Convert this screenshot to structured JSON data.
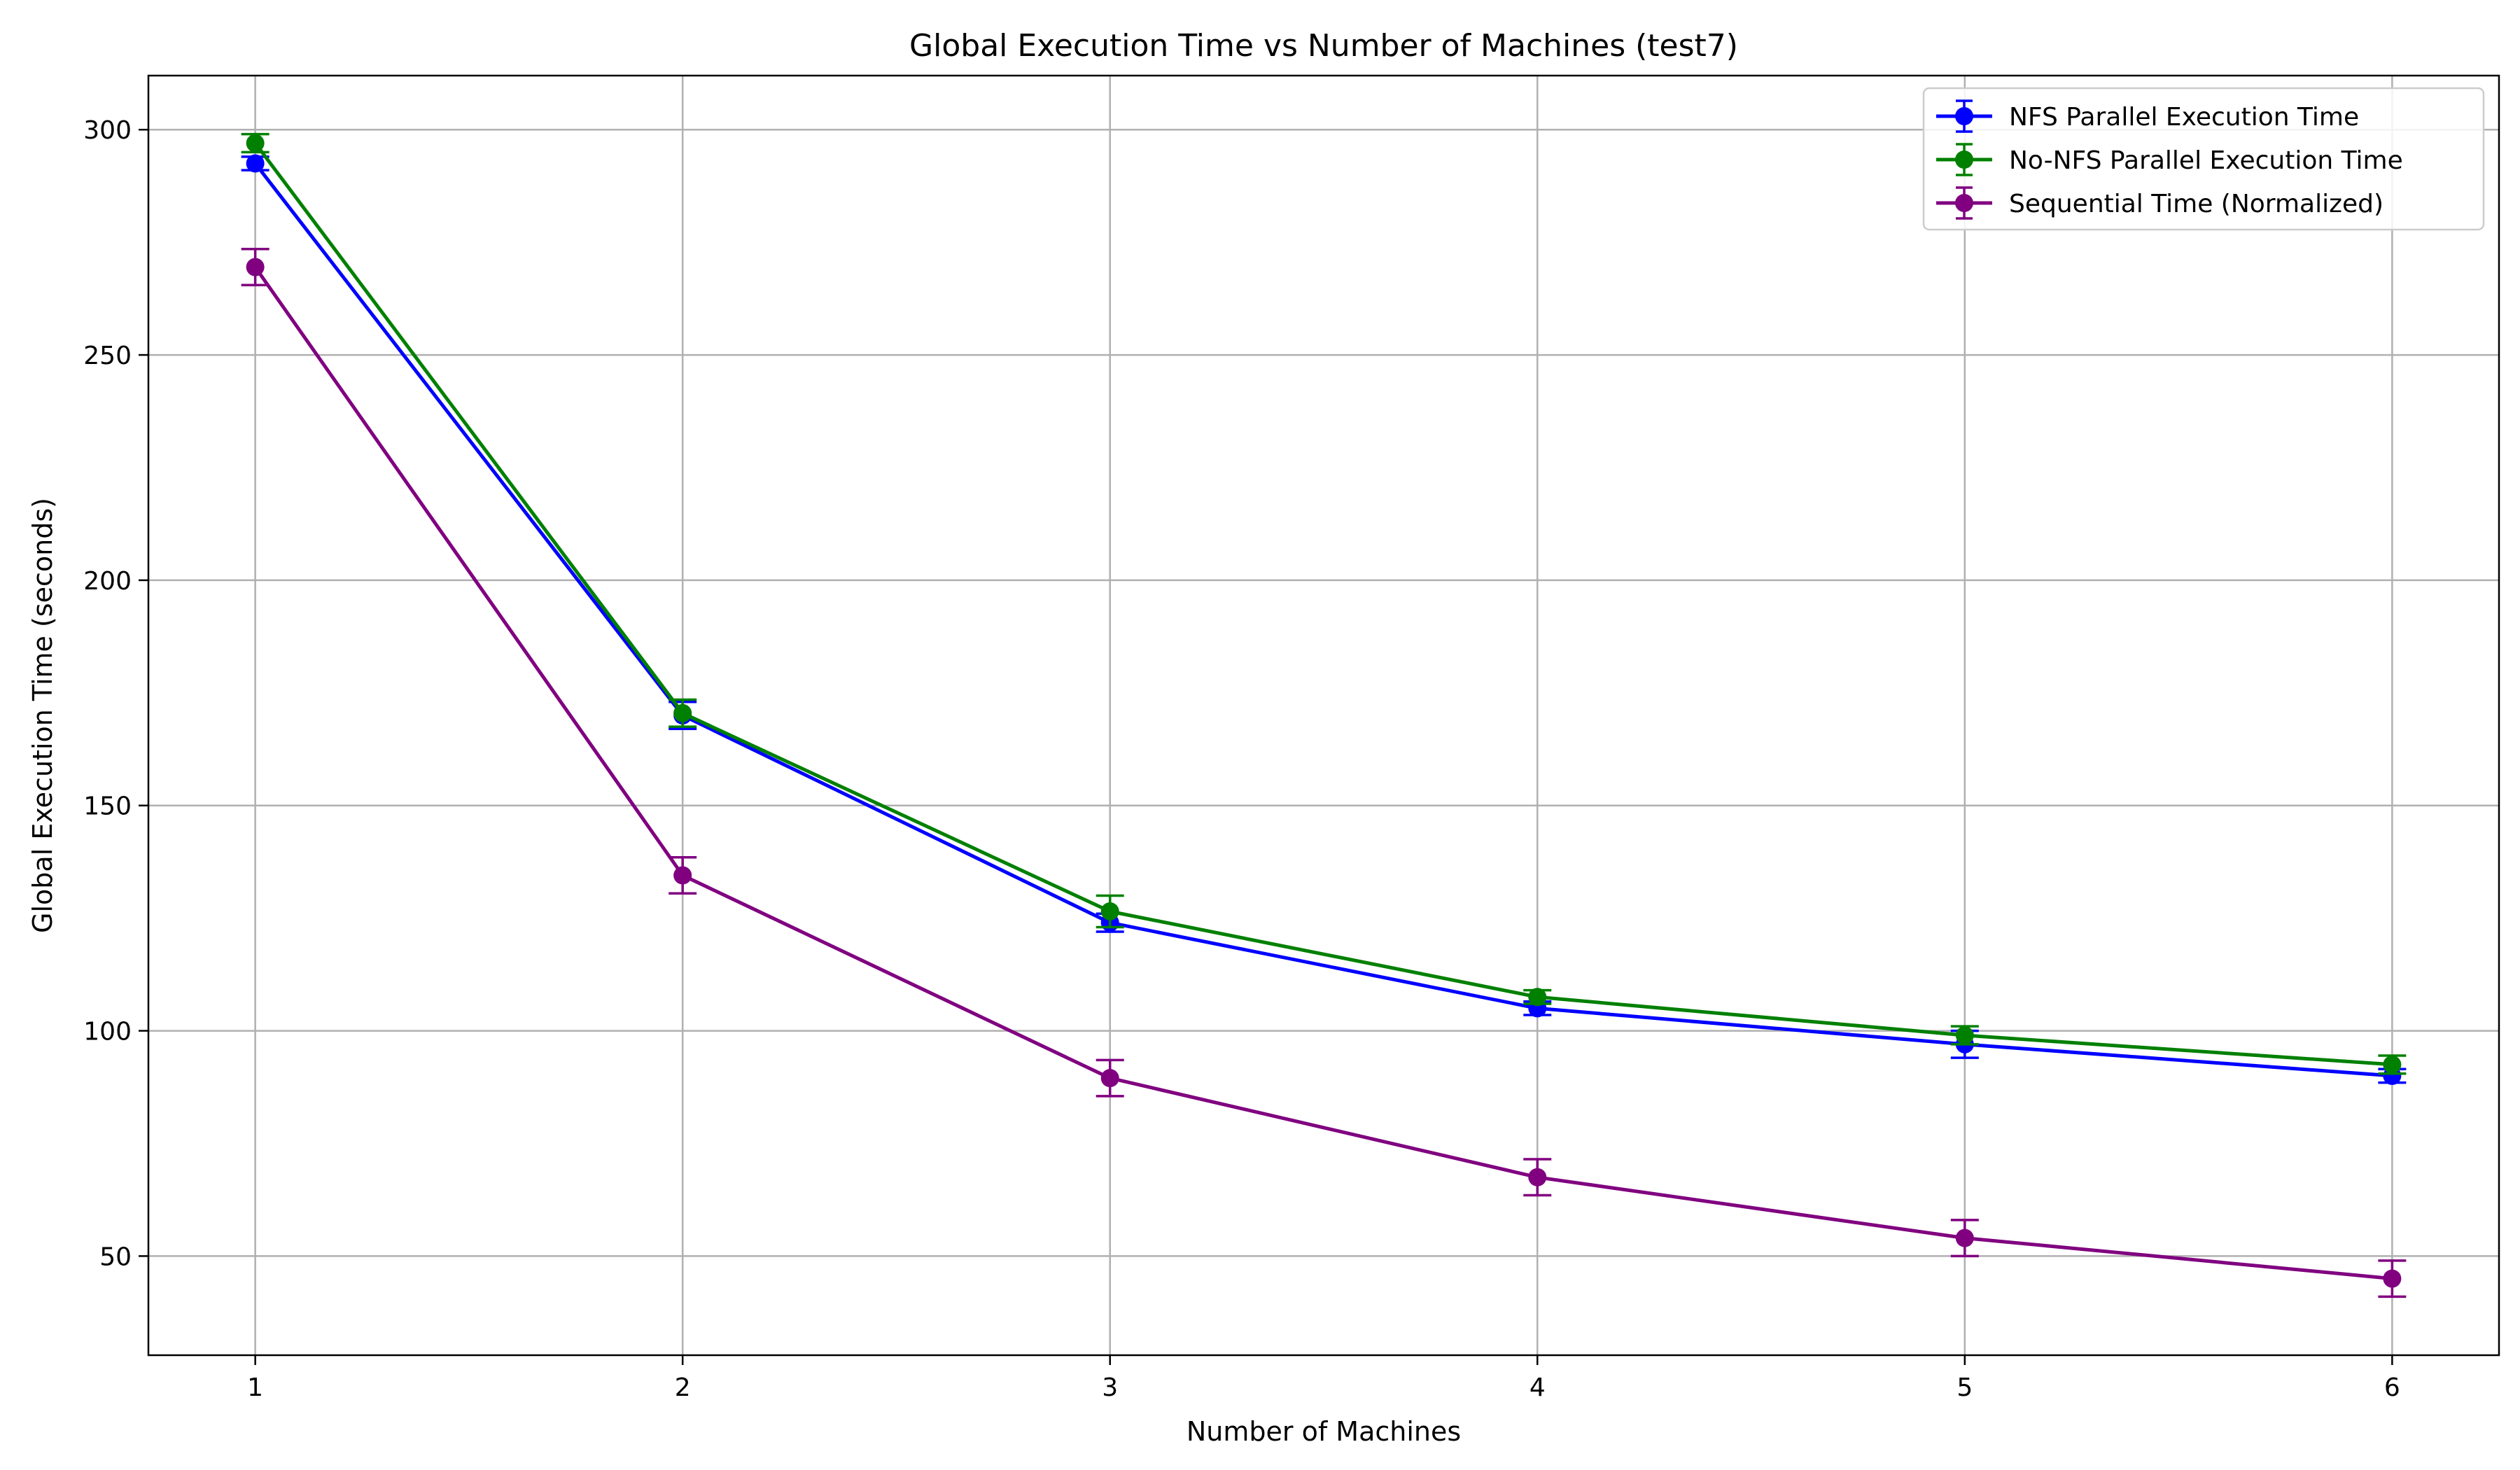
{
  "chart_data": {
    "type": "line",
    "title": "Global Execution Time vs Number of Machines (test7)",
    "xlabel": "Number of Machines",
    "ylabel": "Global Execution Time (seconds)",
    "x": [
      1,
      2,
      3,
      4,
      5,
      6
    ],
    "xticks": [
      "1",
      "2",
      "3",
      "4",
      "5",
      "6"
    ],
    "yticks": [
      "50",
      "100",
      "150",
      "200",
      "250",
      "300"
    ],
    "xlim": [
      0.75,
      6.25
    ],
    "ylim": [
      28,
      312
    ],
    "grid": true,
    "legend_position": "top-right",
    "series": [
      {
        "name": "NFS Parallel Execution Time",
        "color": "#0000ff",
        "values": [
          292.5,
          170,
          124,
          105,
          97,
          90
        ],
        "errors": [
          1.5,
          3,
          2,
          1.5,
          3,
          1.5
        ]
      },
      {
        "name": "No-NFS Parallel Execution Time",
        "color": "#008000",
        "values": [
          297,
          170.5,
          126.5,
          107.5,
          99,
          92.5
        ],
        "errors": [
          2,
          3,
          3.5,
          1.5,
          2,
          2
        ]
      },
      {
        "name": "Sequential Time (Normalized)",
        "color": "#800080",
        "values": [
          269.5,
          134.5,
          89.5,
          67.5,
          54,
          45
        ],
        "errors": [
          4,
          4,
          4,
          4,
          4,
          4
        ]
      }
    ]
  }
}
